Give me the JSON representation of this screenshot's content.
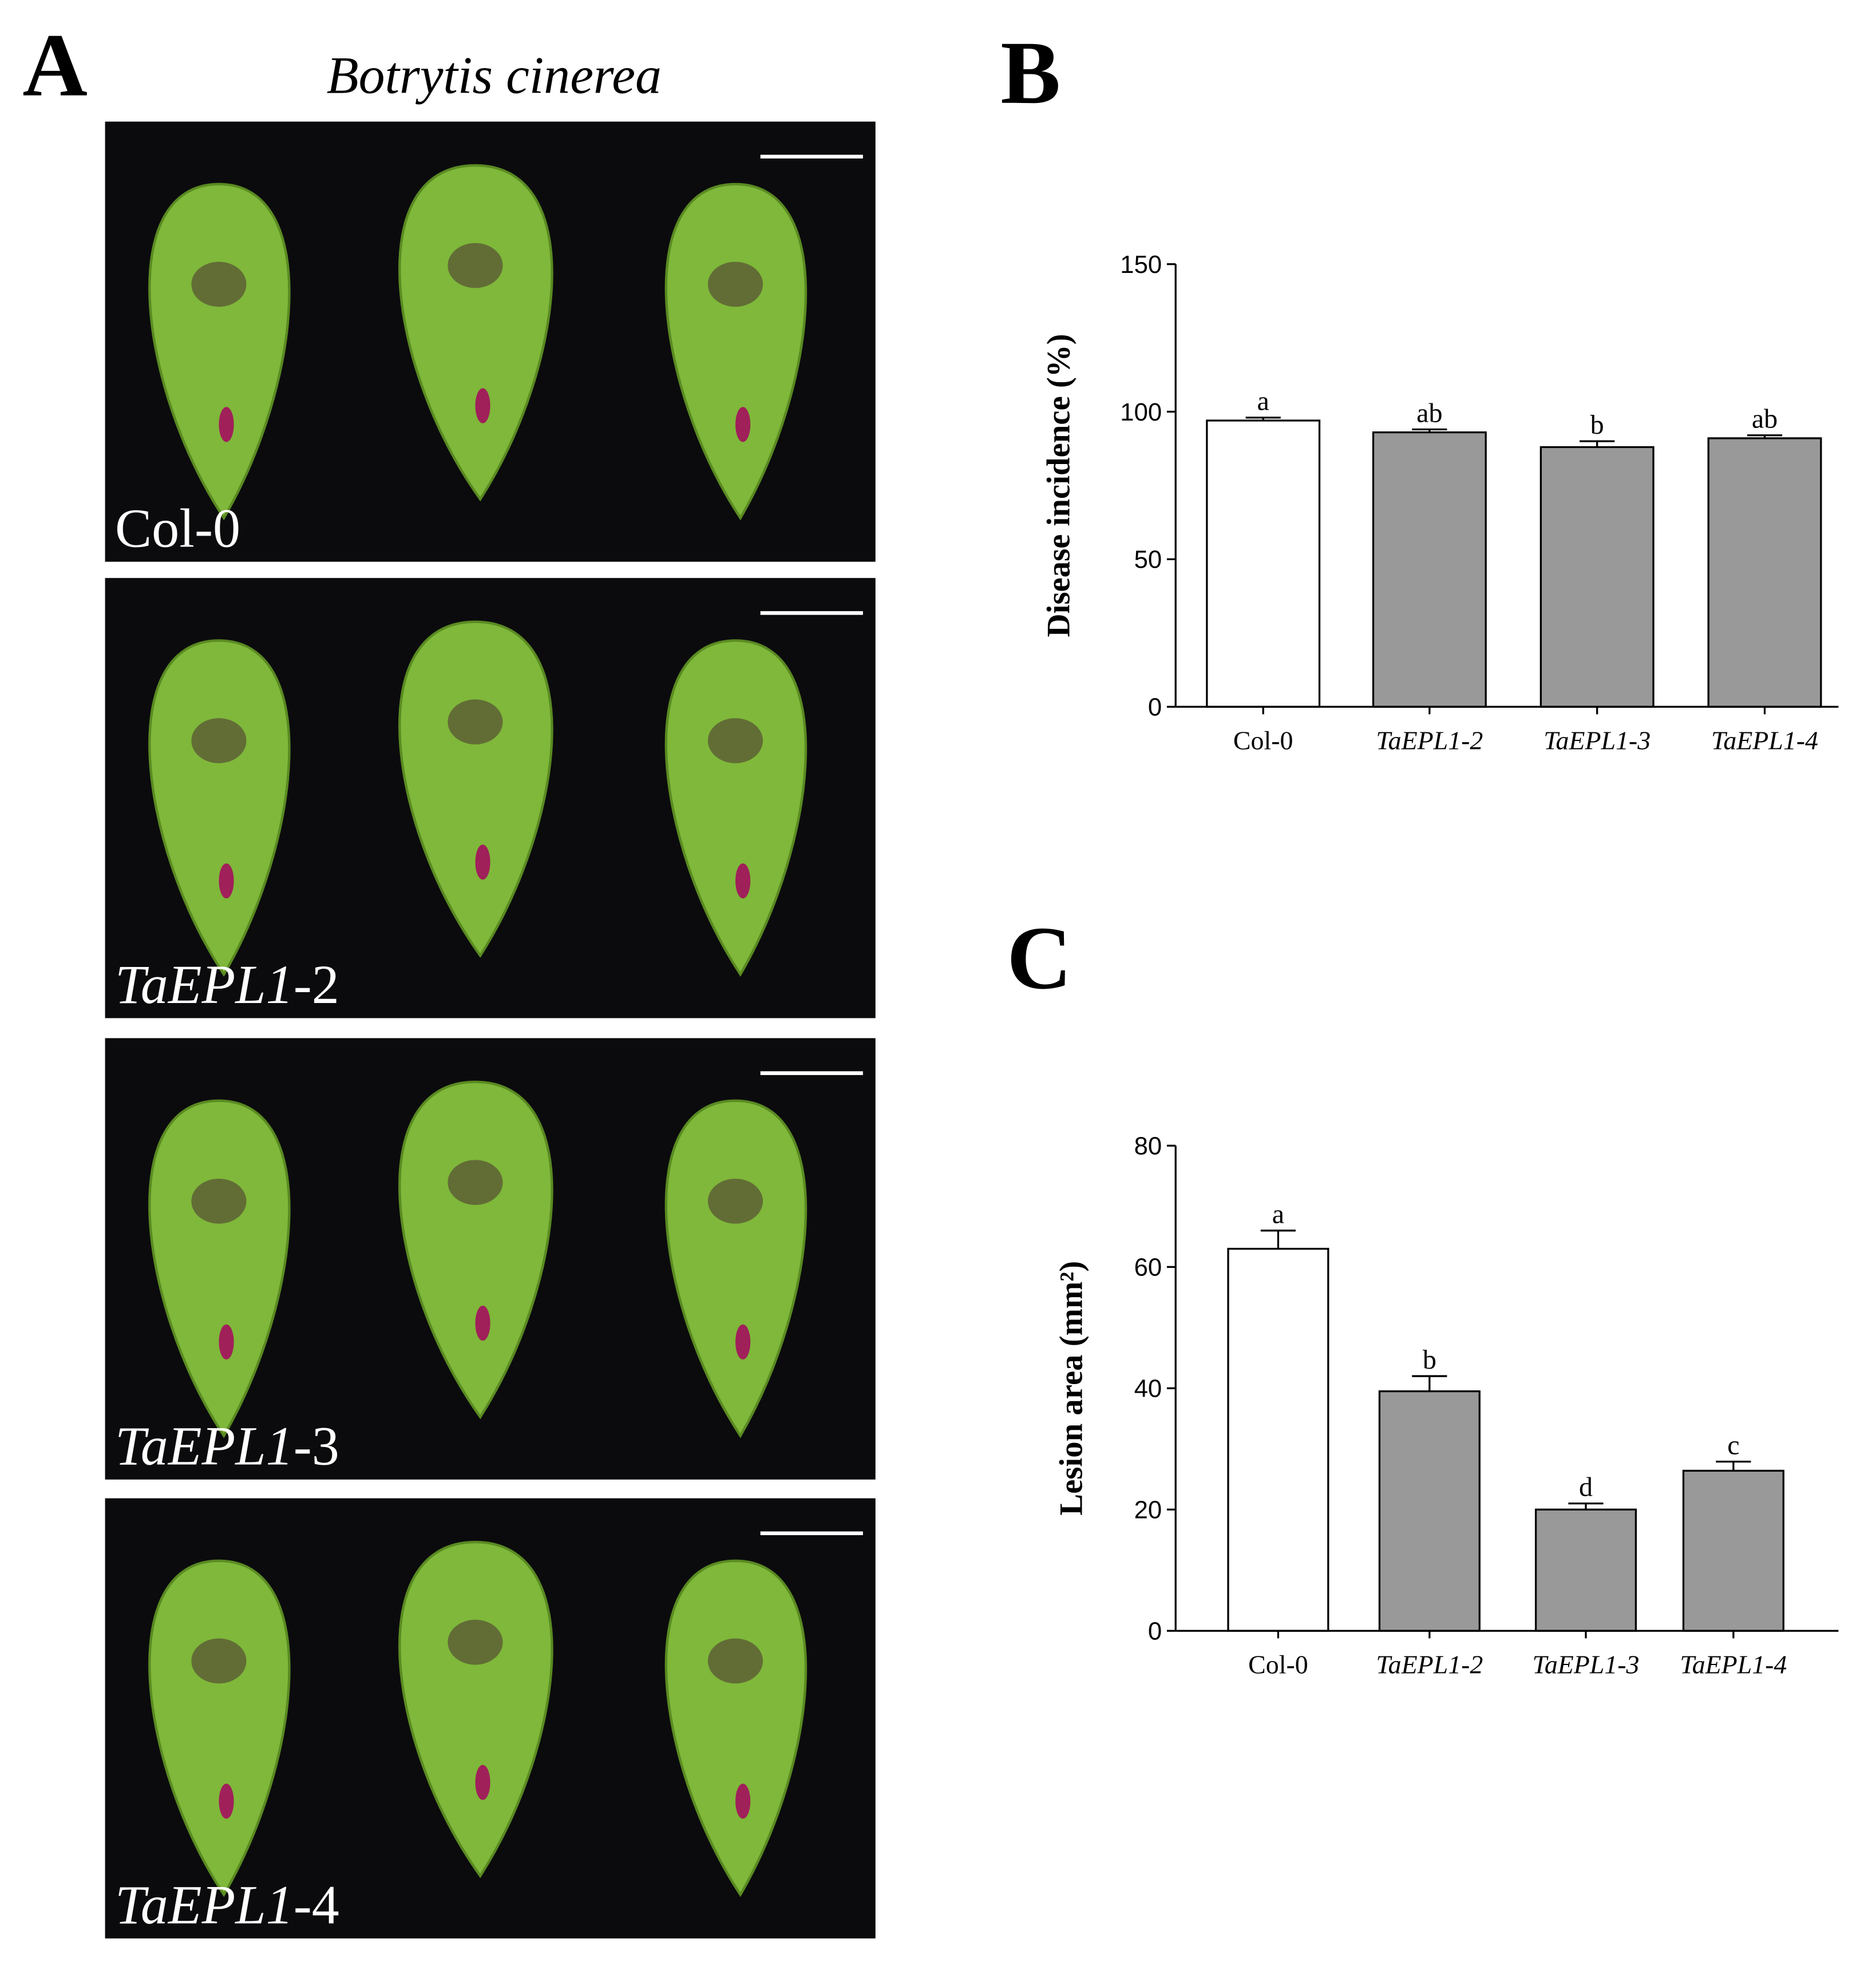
{
  "panel_a": {
    "panel_label": "A",
    "title": "Botrytis cinerea",
    "photos": [
      {
        "gene": "Col-0",
        "suffix": ""
      },
      {
        "gene": "TaEPL1",
        "suffix": "-2"
      },
      {
        "gene": "TaEPL1",
        "suffix": "-3"
      },
      {
        "gene": "TaEPL1",
        "suffix": "-4"
      }
    ]
  },
  "chart_data": [
    {
      "type": "bar",
      "panel_label": "B",
      "y_label": "Disease incidence (%)",
      "categories": [
        "Col-0",
        "TaEPL1-2",
        "TaEPL1-3",
        "TaEPL1-4"
      ],
      "category_style": [
        "normal",
        "italic",
        "italic",
        "italic"
      ],
      "values": [
        97,
        93,
        88,
        91
      ],
      "errors": [
        1,
        1,
        2,
        1
      ],
      "letters": [
        "a",
        "ab",
        "b",
        "ab"
      ],
      "colors": [
        "#ffffff",
        "#999999",
        "#999999",
        "#999999"
      ],
      "ylim": [
        0,
        150
      ],
      "yticks": [
        0,
        50,
        100,
        150
      ]
    },
    {
      "type": "bar",
      "panel_label": "C",
      "y_label": "Lesion area (mm²)",
      "categories": [
        "Col-0",
        "TaEPL1-2",
        "TaEPL1-3",
        "TaEPL1-4"
      ],
      "category_style": [
        "normal",
        "italic",
        "italic",
        "italic"
      ],
      "values": [
        63,
        39.5,
        20,
        26.4
      ],
      "errors": [
        3,
        2.5,
        1,
        1.5
      ],
      "letters": [
        "a",
        "b",
        "d",
        "c"
      ],
      "colors": [
        "#ffffff",
        "#999999",
        "#999999",
        "#999999"
      ],
      "ylim": [
        0,
        80
      ],
      "yticks": [
        0,
        20,
        40,
        60,
        80
      ]
    }
  ]
}
